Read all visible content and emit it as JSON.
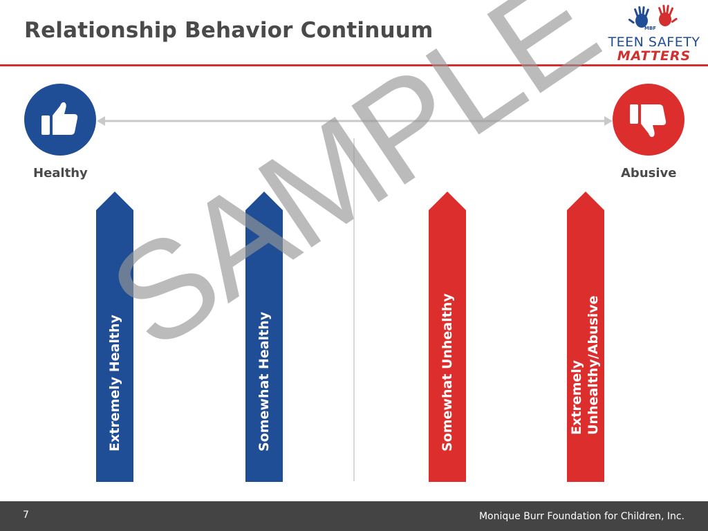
{
  "slide": {
    "title": "Relationship Behavior Continuum",
    "page_number": "7",
    "footer_text": "Monique Burr Foundation for Children, Inc.",
    "watermark": "SAMPLE"
  },
  "logo": {
    "badge": "MBF",
    "line1": "TEEN SAFETY",
    "line2": "MATTERS"
  },
  "scale": {
    "left_end": {
      "label": "Healthy",
      "icon": "thumbs-up-icon",
      "color": "#1f4e96"
    },
    "right_end": {
      "label": "Abusive",
      "icon": "thumbs-down-icon",
      "color": "#dd2e2e"
    }
  },
  "bars": [
    {
      "label": "Extremely Healthy",
      "color": "#1f4e96"
    },
    {
      "label": "Somewhat Healthy",
      "color": "#1f4e96"
    },
    {
      "label": "Somewhat Unhealthy",
      "color": "#dd2e2e"
    },
    {
      "label_lines": [
        "Extremely",
        "Unhealthy/Abusive"
      ],
      "color": "#dd2e2e"
    }
  ]
}
